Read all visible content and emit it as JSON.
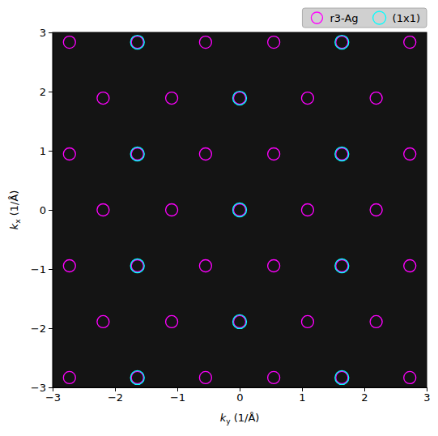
{
  "chart_data": {
    "type": "scatter",
    "x_label": "ky (1/Å)",
    "y_label": "kx (1/Å)",
    "xlim": [
      -3,
      3
    ],
    "ylim": [
      -3,
      3
    ],
    "xticks": [
      {
        "value": -3,
        "label": "−3"
      },
      {
        "value": -2,
        "label": "−2"
      },
      {
        "value": -1,
        "label": "−1"
      },
      0,
      1,
      2,
      3
    ],
    "yticks": [
      {
        "value": -3,
        "label": "−3"
      },
      {
        "value": -2,
        "label": "−2"
      },
      {
        "value": -1,
        "label": "−1"
      },
      0,
      1,
      2,
      3
    ],
    "grid": false,
    "legend": "top",
    "series": [
      {
        "name": "r3-Ag",
        "color": "#ff00ff",
        "marker": "circle-open",
        "x": [
          -2.73,
          -1.64,
          -0.547,
          0.547,
          1.64,
          2.73,
          -2.19,
          -1.09,
          0,
          1.09,
          2.19,
          -2.73,
          -1.64,
          -0.547,
          0.547,
          1.64,
          2.73,
          -2.19,
          -1.09,
          0,
          1.09,
          2.19,
          -2.73,
          -1.64,
          -0.547,
          0.547,
          1.64,
          2.73,
          -2.19,
          -1.09,
          0,
          1.09,
          2.19,
          -2.73,
          -1.64,
          -0.547,
          0.547,
          1.64,
          2.73
        ],
        "values": [
          2.835,
          2.835,
          2.835,
          2.835,
          2.835,
          2.835,
          1.89,
          1.89,
          1.89,
          1.89,
          1.89,
          0.945,
          0.945,
          0.945,
          0.945,
          0.945,
          0.945,
          0,
          0,
          0,
          0,
          0,
          -0.945,
          -0.945,
          -0.945,
          -0.945,
          -0.945,
          -0.945,
          -1.89,
          -1.89,
          -1.89,
          -1.89,
          -1.89,
          -2.835,
          -2.835,
          -2.835,
          -2.835,
          -2.835,
          -2.835
        ]
      },
      {
        "name": "(1x1)",
        "color": "#00ffff",
        "marker": "circle-open",
        "x": [
          -1.64,
          1.64,
          0,
          -1.64,
          1.64,
          0,
          -1.64,
          1.64,
          0,
          -1.64,
          1.64
        ],
        "values": [
          2.835,
          2.835,
          1.89,
          0.945,
          0.945,
          0,
          -0.945,
          -0.945,
          -1.89,
          -2.835,
          -2.835
        ]
      }
    ]
  }
}
